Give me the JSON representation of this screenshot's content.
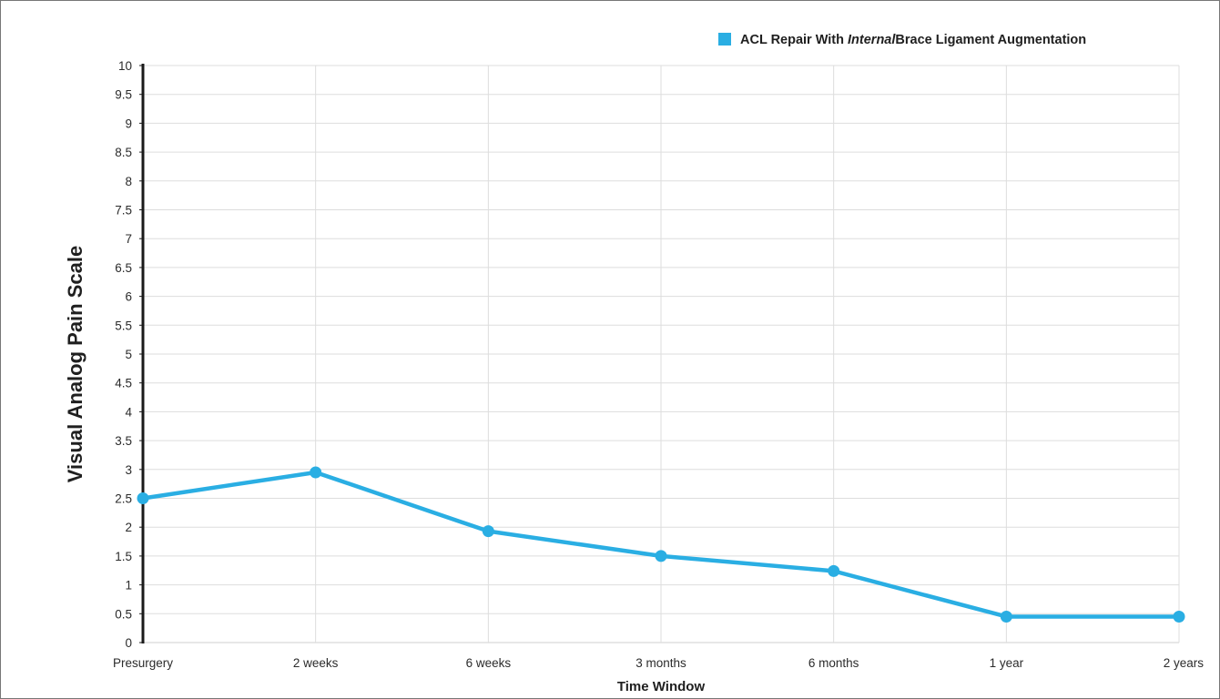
{
  "chart_data": {
    "type": "line",
    "categories": [
      "Presurgery",
      "2 weeks",
      "6 weeks",
      "3 months",
      "6 months",
      "1 year",
      "2 years"
    ],
    "series": [
      {
        "name_parts": [
          "ACL Repair With ",
          "Internal",
          "Brace Ligament Augmentation"
        ],
        "values": [
          2.5,
          2.95,
          1.93,
          1.5,
          1.24,
          0.45,
          0.45
        ],
        "color": "#2aaee3"
      }
    ],
    "xlabel": "Time Window",
    "ylabel": "Visual Analog Pain Scale",
    "ylim": [
      0,
      10
    ],
    "yticks": [
      "0",
      "0.5",
      "1",
      "1.5",
      "2",
      "2.5",
      "3",
      "3.5",
      "4",
      "4.5",
      "5",
      "5.5",
      "6",
      "6.5",
      "7",
      "7.5",
      "8",
      "8.5",
      "9",
      "9.5",
      "10"
    ],
    "grid": true,
    "legend_position": "top-right"
  }
}
